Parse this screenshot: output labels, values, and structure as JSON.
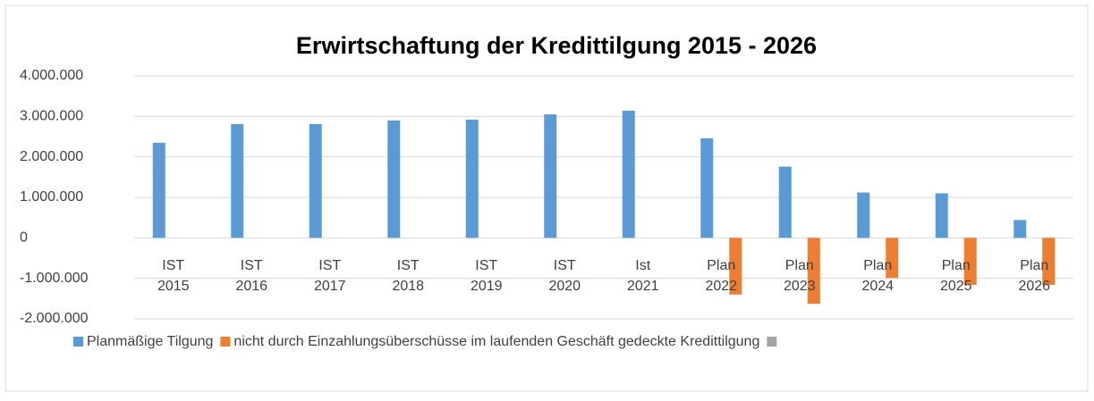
{
  "chart_data": {
    "type": "bar",
    "title": "Erwirtschaftung der Kredittilgung 2015 - 2026",
    "categories": [
      "IST 2015",
      "IST 2016",
      "IST 2017",
      "IST 2018",
      "IST 2019",
      "IST 2020",
      "Ist 2021",
      "Plan 2022",
      "Plan 2023",
      "Plan 2024",
      "Plan 2025",
      "Plan 2026"
    ],
    "series": [
      {
        "name": "Planmäßige Tilgung",
        "color": "#5b9bd5",
        "values": [
          2350000,
          2810000,
          2810000,
          2900000,
          2920000,
          3050000,
          3140000,
          2460000,
          1760000,
          1120000,
          1100000,
          440000
        ]
      },
      {
        "name": "nicht durch Einzahlungsüberschüsse im laufenden Geschäft gedeckte Kredittilgung",
        "color": "#ed7d31",
        "values": [
          null,
          null,
          null,
          null,
          null,
          null,
          null,
          -1400000,
          -1630000,
          -990000,
          -1160000,
          -1160000
        ]
      },
      {
        "color": "#a5a5a5",
        "values": [
          null,
          null,
          null,
          null,
          null,
          null,
          null,
          null,
          null,
          null,
          null,
          null
        ]
      }
    ],
    "ylim": [
      -2000000,
      4000000
    ],
    "yticks": [
      {
        "value": 4000000,
        "label": "4.000.000"
      },
      {
        "value": 3000000,
        "label": "3.000.000"
      },
      {
        "value": 2000000,
        "label": "2.000.000"
      },
      {
        "value": 1000000,
        "label": "1.000.000"
      },
      0,
      {
        "value": -1000000,
        "label": "-1.000.000"
      },
      {
        "value": -2000000,
        "label": "-2.000.000"
      }
    ],
    "grid": true,
    "legend": "bottom"
  }
}
